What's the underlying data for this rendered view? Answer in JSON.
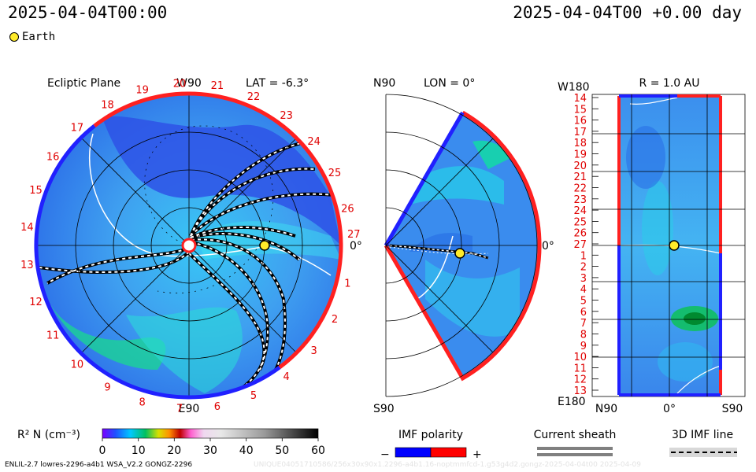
{
  "header": {
    "left_time": "2025-04-04T00:00",
    "right_time": "2025-04-04T00 +0.00 day"
  },
  "legend": {
    "earth_label": "Earth"
  },
  "panels": {
    "ecliptic": {
      "title": "Ecliptic Plane",
      "top_label": "W90",
      "bottom_label": "E90",
      "right_label": "0°",
      "lat_label": "LAT = -6.3°",
      "carrington_ticks": [
        "27",
        "1",
        "2",
        "3",
        "4",
        "5",
        "6",
        "7",
        "8",
        "9",
        "10",
        "11",
        "12",
        "13",
        "14",
        "15",
        "16",
        "17",
        "18",
        "19",
        "20",
        "21",
        "22",
        "23",
        "24",
        "25",
        "26"
      ]
    },
    "meridional": {
      "top_label": "N90",
      "bottom_label": "S90",
      "lon_label": "LON = 0°",
      "right_label": "0°"
    },
    "radial": {
      "title": "R = 1.0 AU",
      "top_label": "W180",
      "bottom_label": "E180",
      "x_ticks": [
        "N90",
        "0°",
        "S90"
      ],
      "y_ticks": [
        "14",
        "15",
        "16",
        "17",
        "18",
        "19",
        "20",
        "21",
        "22",
        "23",
        "24",
        "25",
        "26",
        "27",
        "1",
        "2",
        "3",
        "4",
        "5",
        "6",
        "7",
        "8",
        "9",
        "10",
        "11",
        "12",
        "13"
      ]
    }
  },
  "colorbar": {
    "label": "R² N (cm⁻³)",
    "ticks": [
      "0",
      "10",
      "20",
      "30",
      "40",
      "50",
      "60"
    ],
    "min": 0,
    "max": 60
  },
  "imf_polarity": {
    "title": "IMF polarity",
    "minus": "−",
    "plus": "+",
    "negative_color": "#0000ff",
    "positive_color": "#ff0000"
  },
  "current_sheath": {
    "title": "Current sheath"
  },
  "imf_line": {
    "title": "3D IMF line"
  },
  "footer": {
    "model": "ENLIL-2.7 lowres-2296-a4b1 WSA_V2.2 GONGZ-2296",
    "watermark": "UNIQUE04051710586/256x30x90x1.2296-a4b1.16-noptmmfcd-1.g53g4d2.gongz-2025-04-04t00   2025-04-09"
  },
  "chart_data": [
    {
      "type": "heatmap",
      "title": "Ecliptic Plane",
      "projection": "polar",
      "variable": "R² N (cm⁻³)",
      "value_range": [
        0,
        60
      ],
      "earth": {
        "lon_deg": 0,
        "r_au": 1.0
      }
    },
    {
      "type": "heatmap",
      "title": "LON = 0°",
      "projection": "meridional",
      "variable": "R² N (cm⁻³)",
      "lat_range_deg": [
        -60,
        60
      ],
      "earth": {
        "lat_deg": -6.3,
        "r_au": 1.0
      }
    },
    {
      "type": "heatmap",
      "title": "R = 1.0 AU",
      "variable": "R² N (cm⁻³)",
      "x_ticks": [
        "N90",
        "0°",
        "S90"
      ],
      "y_ticks": [
        "14",
        "15",
        "16",
        "17",
        "18",
        "19",
        "20",
        "21",
        "22",
        "23",
        "24",
        "25",
        "26",
        "27",
        "1",
        "2",
        "3",
        "4",
        "5",
        "6",
        "7",
        "8",
        "9",
        "10",
        "11",
        "12",
        "13"
      ],
      "earth": {
        "row": "27",
        "lat_deg": -6.3
      }
    }
  ]
}
